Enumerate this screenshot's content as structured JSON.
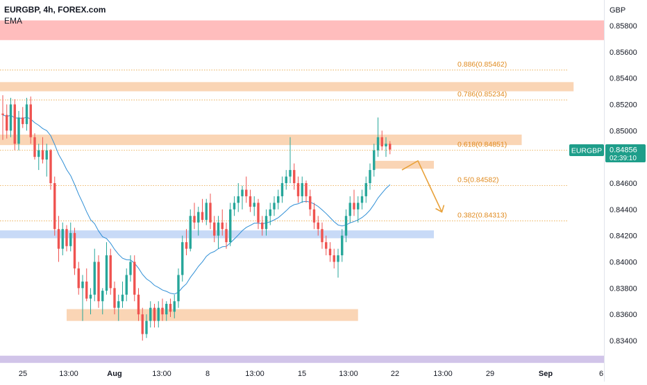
{
  "header": {
    "title": "EURGBP, 4h, FOREX.com",
    "indicator": "EMA"
  },
  "chart_data": {
    "type": "candlestick",
    "symbol": "EURGBP",
    "timeframe": "4h",
    "source": "FOREX.com",
    "indicator": "EMA",
    "currency_label": "GBP",
    "ylim": [
      0.8324,
      0.8591
    ],
    "y_ticks": [
      "0.85800",
      "0.85600",
      "0.85400",
      "0.85200",
      "0.85000",
      "0.84600",
      "0.84400",
      "0.84200",
      "0.84000",
      "0.83800",
      "0.83600",
      "0.83400"
    ],
    "x_ticks": [
      "25",
      "13:00",
      "Aug",
      "13:00",
      "8",
      "13:00",
      "15",
      "13:00",
      "22",
      "13:00",
      "29",
      "Sep",
      "6"
    ],
    "last_price": {
      "symbol": "EURGBP",
      "price": 0.84856,
      "price_label": "0.84856",
      "countdown": "02:39:10"
    },
    "fib_levels": [
      {
        "ratio": 0.886,
        "price": 0.85462,
        "label": "0.886(0.85462)"
      },
      {
        "ratio": 0.786,
        "price": 0.85234,
        "label": "0.786(0.85234)"
      },
      {
        "ratio": 0.618,
        "price": 0.84851,
        "label": "0.618(0.84851)"
      },
      {
        "ratio": 0.5,
        "price": 0.84582,
        "label": "0.5(0.84582)"
      },
      {
        "ratio": 0.382,
        "price": 0.84313,
        "label": "0.382(0.84313)"
      }
    ],
    "zones": [
      {
        "kind": "resistance",
        "color": "#ffbdbd",
        "from_price": 0.8569,
        "to_price": 0.8584,
        "start_bar": -5,
        "end_bar": 200
      },
      {
        "kind": "supply",
        "color": "#fad5b5",
        "from_price": 0.853,
        "to_price": 0.8537,
        "start_bar": -5,
        "end_bar": 143
      },
      {
        "kind": "supply",
        "color": "#fad5b5",
        "from_price": 0.8489,
        "to_price": 0.8497,
        "start_bar": -5,
        "end_bar": 130
      },
      {
        "kind": "minor",
        "color": "#fad5b5",
        "from_price": 0.8471,
        "to_price": 0.8477,
        "start_bar": 93,
        "end_bar": 108
      },
      {
        "kind": "support",
        "color": "#c8daf7",
        "from_price": 0.8418,
        "to_price": 0.8424,
        "start_bar": -5,
        "end_bar": 108
      },
      {
        "kind": "demand",
        "color": "#fad5b5",
        "from_price": 0.8355,
        "to_price": 0.8364,
        "start_bar": 16,
        "end_bar": 89
      },
      {
        "kind": "bottom",
        "color": "#d1c4e9",
        "from_price": 0.8323,
        "to_price": 0.83285,
        "start_bar": -5,
        "end_bar": 200
      }
    ],
    "projection": {
      "color": "#e8a13a",
      "points": [
        [
          100,
          0.847
        ],
        [
          104,
          0.8477
        ],
        [
          110,
          0.8438
        ]
      ]
    },
    "candles": [
      [
        0.8513,
        0.8527,
        0.8493,
        0.8512
      ],
      [
        0.8512,
        0.852,
        0.8494,
        0.85
      ],
      [
        0.85,
        0.8525,
        0.8495,
        0.852
      ],
      [
        0.852,
        0.8524,
        0.8485,
        0.849
      ],
      [
        0.849,
        0.8515,
        0.8485,
        0.851
      ],
      [
        0.851,
        0.8518,
        0.8502,
        0.8505
      ],
      [
        0.8505,
        0.8525,
        0.85,
        0.852
      ],
      [
        0.852,
        0.8526,
        0.849,
        0.8495
      ],
      [
        0.8495,
        0.8498,
        0.8478,
        0.848
      ],
      [
        0.848,
        0.849,
        0.847,
        0.8485
      ],
      [
        0.8485,
        0.8495,
        0.8475,
        0.8478
      ],
      [
        0.8478,
        0.849,
        0.8465,
        0.8485
      ],
      [
        0.8485,
        0.8486,
        0.8455,
        0.846
      ],
      [
        0.846,
        0.8465,
        0.842,
        0.8425
      ],
      [
        0.8425,
        0.8435,
        0.84,
        0.841
      ],
      [
        0.841,
        0.843,
        0.8405,
        0.8425
      ],
      [
        0.8425,
        0.8428,
        0.8408,
        0.8412
      ],
      [
        0.8412,
        0.843,
        0.8408,
        0.8422
      ],
      [
        0.8422,
        0.8426,
        0.839,
        0.8395
      ],
      [
        0.8395,
        0.84,
        0.8375,
        0.838
      ],
      [
        0.838,
        0.839,
        0.8355,
        0.8385
      ],
      [
        0.8385,
        0.8395,
        0.837,
        0.8372
      ],
      [
        0.8372,
        0.838,
        0.836,
        0.8375
      ],
      [
        0.8375,
        0.841,
        0.837,
        0.84
      ],
      [
        0.84,
        0.8405,
        0.8365,
        0.837
      ],
      [
        0.837,
        0.838,
        0.836,
        0.8378
      ],
      [
        0.8378,
        0.8415,
        0.8375,
        0.8405
      ],
      [
        0.8405,
        0.841,
        0.8375,
        0.838
      ],
      [
        0.838,
        0.8385,
        0.836,
        0.8365
      ],
      [
        0.8365,
        0.8375,
        0.8355,
        0.837
      ],
      [
        0.837,
        0.8385,
        0.8365,
        0.8375
      ],
      [
        0.8375,
        0.8395,
        0.837,
        0.839
      ],
      [
        0.839,
        0.8405,
        0.8385,
        0.84
      ],
      [
        0.84,
        0.8405,
        0.837,
        0.8375
      ],
      [
        0.8375,
        0.838,
        0.8355,
        0.836
      ],
      [
        0.836,
        0.8365,
        0.834,
        0.8345
      ],
      [
        0.8345,
        0.836,
        0.8342,
        0.8355
      ],
      [
        0.8355,
        0.837,
        0.835,
        0.8365
      ],
      [
        0.8365,
        0.8368,
        0.835,
        0.8355
      ],
      [
        0.8355,
        0.837,
        0.835,
        0.8365
      ],
      [
        0.8365,
        0.8372,
        0.8355,
        0.836
      ],
      [
        0.836,
        0.837,
        0.8355,
        0.8368
      ],
      [
        0.8368,
        0.8372,
        0.8358,
        0.8362
      ],
      [
        0.8362,
        0.8375,
        0.8357,
        0.837
      ],
      [
        0.837,
        0.8395,
        0.8365,
        0.839
      ],
      [
        0.839,
        0.842,
        0.8385,
        0.8415
      ],
      [
        0.8415,
        0.8425,
        0.8405,
        0.841
      ],
      [
        0.841,
        0.844,
        0.8408,
        0.8435
      ],
      [
        0.8435,
        0.8445,
        0.8425,
        0.843
      ],
      [
        0.843,
        0.8442,
        0.842,
        0.8438
      ],
      [
        0.8438,
        0.8448,
        0.843,
        0.8432
      ],
      [
        0.8432,
        0.8448,
        0.8428,
        0.8445
      ],
      [
        0.8445,
        0.8452,
        0.8425,
        0.843
      ],
      [
        0.843,
        0.8435,
        0.8415,
        0.842
      ],
      [
        0.842,
        0.8435,
        0.841,
        0.843
      ],
      [
        0.843,
        0.844,
        0.842,
        0.8425
      ],
      [
        0.8425,
        0.843,
        0.841,
        0.8415
      ],
      [
        0.8415,
        0.8445,
        0.8412,
        0.844
      ],
      [
        0.844,
        0.845,
        0.8435,
        0.8445
      ],
      [
        0.8445,
        0.846,
        0.8438,
        0.845
      ],
      [
        0.845,
        0.8458,
        0.844,
        0.8455
      ],
      [
        0.8455,
        0.8465,
        0.8445,
        0.845
      ],
      [
        0.845,
        0.8455,
        0.8438,
        0.8442
      ],
      [
        0.8442,
        0.845,
        0.8435,
        0.8445
      ],
      [
        0.8445,
        0.8448,
        0.8425,
        0.843
      ],
      [
        0.843,
        0.8435,
        0.842,
        0.8425
      ],
      [
        0.8425,
        0.844,
        0.842,
        0.8435
      ],
      [
        0.8435,
        0.8445,
        0.8428,
        0.844
      ],
      [
        0.844,
        0.845,
        0.8435,
        0.8445
      ],
      [
        0.8445,
        0.8455,
        0.844,
        0.845
      ],
      [
        0.845,
        0.8465,
        0.8445,
        0.846
      ],
      [
        0.846,
        0.847,
        0.8455,
        0.8465
      ],
      [
        0.8465,
        0.8495,
        0.846,
        0.847
      ],
      [
        0.847,
        0.8475,
        0.8455,
        0.846
      ],
      [
        0.846,
        0.8465,
        0.8445,
        0.845
      ],
      [
        0.845,
        0.8465,
        0.8445,
        0.846
      ],
      [
        0.846,
        0.8462,
        0.8445,
        0.845
      ],
      [
        0.845,
        0.8455,
        0.8435,
        0.844
      ],
      [
        0.844,
        0.8445,
        0.8425,
        0.843
      ],
      [
        0.843,
        0.8435,
        0.842,
        0.8425
      ],
      [
        0.8425,
        0.843,
        0.841,
        0.8415
      ],
      [
        0.8415,
        0.842,
        0.8405,
        0.841
      ],
      [
        0.841,
        0.8415,
        0.84,
        0.8405
      ],
      [
        0.8405,
        0.841,
        0.8395,
        0.84
      ],
      [
        0.84,
        0.841,
        0.8388,
        0.8405
      ],
      [
        0.8405,
        0.8425,
        0.84,
        0.842
      ],
      [
        0.842,
        0.844,
        0.8415,
        0.8435
      ],
      [
        0.8435,
        0.845,
        0.843,
        0.8445
      ],
      [
        0.8445,
        0.8455,
        0.8435,
        0.844
      ],
      [
        0.844,
        0.845,
        0.843,
        0.8445
      ],
      [
        0.8445,
        0.8455,
        0.844,
        0.845
      ],
      [
        0.845,
        0.8465,
        0.8445,
        0.846
      ],
      [
        0.846,
        0.8475,
        0.8455,
        0.847
      ],
      [
        0.847,
        0.849,
        0.8465,
        0.8485
      ],
      [
        0.8485,
        0.851,
        0.848,
        0.8495
      ],
      [
        0.8495,
        0.85,
        0.8485,
        0.8488
      ],
      [
        0.8488,
        0.8495,
        0.848,
        0.849
      ],
      [
        0.849,
        0.8492,
        0.8482,
        0.84856
      ]
    ]
  }
}
